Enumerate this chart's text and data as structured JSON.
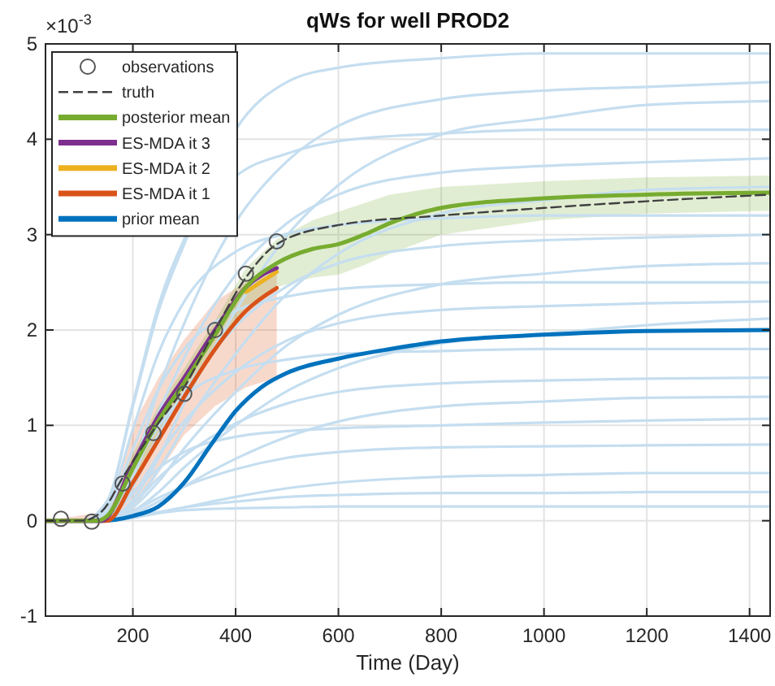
{
  "chart_data": {
    "type": "line",
    "title": "qWs for well PROD2",
    "xlabel": "Time (Day)",
    "annotations": [
      "×10$^{-3}$"
    ],
    "x": [
      30,
      100,
      150,
      200,
      250,
      300,
      400,
      500,
      600,
      800,
      1000,
      1200,
      1440
    ],
    "xlim": [
      30,
      1440
    ],
    "xticks": [
      200,
      400,
      600,
      800,
      1000,
      1200,
      1400
    ],
    "ylim": [
      -1,
      5
    ],
    "yticks": [
      -1,
      0,
      1,
      2,
      3,
      4,
      5
    ],
    "grid": true,
    "legend": "top left",
    "series": [
      {
        "color": "#c5def0",
        "values": [
          0,
          0,
          0.2,
          1.2,
          2.2,
          2.9,
          4.1,
          4.6,
          4.75,
          4.85,
          4.9,
          4.9,
          4.9
        ]
      },
      {
        "color": "#c5def0",
        "values": [
          0,
          0,
          0.09,
          0.55,
          1.38,
          2.07,
          3.13,
          3.77,
          4.14,
          4.42,
          4.51,
          4.55,
          4.6
        ]
      },
      {
        "color": "#c5def0",
        "values": [
          0,
          0,
          0,
          0.22,
          0.66,
          1.23,
          2.2,
          2.99,
          3.52,
          4.05,
          4.22,
          4.36,
          4.4
        ]
      },
      {
        "color": "#c5def0",
        "values": [
          0,
          0,
          0.21,
          1.23,
          2.26,
          2.95,
          3.61,
          3.85,
          3.98,
          4.06,
          4.1,
          4.1,
          4.1
        ]
      },
      {
        "color": "#c5def0",
        "values": [
          0,
          0,
          0.08,
          0.46,
          1.14,
          1.71,
          2.58,
          3.12,
          3.42,
          3.65,
          3.72,
          3.76,
          3.8
        ]
      },
      {
        "color": "#c5def0",
        "values": [
          0,
          0,
          0,
          0.18,
          0.53,
          0.98,
          1.75,
          2.38,
          2.8,
          3.22,
          3.36,
          3.47,
          3.5
        ]
      },
      {
        "color": "#c5def0",
        "values": [
          0,
          0,
          0.16,
          0.96,
          1.76,
          2.3,
          2.82,
          3.01,
          3.1,
          3.17,
          3.2,
          3.2,
          3.2
        ]
      },
      {
        "color": "#c5def0",
        "values": [
          0,
          0,
          0.06,
          0.36,
          0.9,
          1.35,
          2.04,
          2.46,
          2.7,
          2.88,
          2.94,
          2.97,
          3.0
        ]
      },
      {
        "color": "#c5def0",
        "values": [
          0,
          0,
          0,
          0.14,
          0.41,
          0.76,
          1.35,
          1.84,
          2.16,
          2.48,
          2.59,
          2.67,
          2.7
        ]
      },
      {
        "color": "#c5def0",
        "values": [
          0,
          0,
          0.13,
          0.75,
          1.38,
          1.8,
          2.2,
          2.35,
          2.43,
          2.48,
          2.5,
          2.5,
          2.5
        ]
      },
      {
        "color": "#c5def0",
        "values": [
          0,
          0,
          0.05,
          0.28,
          0.69,
          1.04,
          1.56,
          1.89,
          2.07,
          2.21,
          2.25,
          2.28,
          2.3
        ]
      },
      {
        "color": "#c5def0",
        "values": [
          0,
          0,
          0,
          0.1,
          0.3,
          0.56,
          1.0,
          1.36,
          1.6,
          1.86,
          1.96,
          2.05,
          2.12
        ]
      },
      {
        "color": "#c5def0",
        "values": [
          0,
          0,
          0.09,
          0.54,
          0.99,
          1.3,
          1.58,
          1.69,
          1.75,
          1.78,
          1.8,
          1.8,
          1.8
        ]
      },
      {
        "color": "#c5def0",
        "values": [
          0,
          0,
          0.03,
          0.18,
          0.45,
          0.68,
          1.02,
          1.23,
          1.35,
          1.44,
          1.47,
          1.49,
          1.5
        ]
      },
      {
        "color": "#c5def0",
        "values": [
          0,
          0,
          0,
          0.07,
          0.2,
          0.36,
          0.65,
          0.88,
          1.04,
          1.2,
          1.25,
          1.29,
          1.3
        ]
      },
      {
        "color": "#c5def0",
        "values": [
          0,
          0,
          0.05,
          0.3,
          0.55,
          0.72,
          0.88,
          0.94,
          0.97,
          1.0,
          1.03,
          1.05,
          1.07
        ]
      },
      {
        "color": "#c5def0",
        "values": [
          0,
          0,
          0.02,
          0.1,
          0.24,
          0.36,
          0.54,
          0.66,
          0.72,
          0.77,
          0.78,
          0.79,
          0.8
        ]
      },
      {
        "color": "#c5def0",
        "values": [
          0,
          0,
          0,
          0.03,
          0.08,
          0.14,
          0.25,
          0.34,
          0.4,
          0.46,
          0.48,
          0.5,
          0.5
        ]
      },
      {
        "color": "#c5def0",
        "values": [
          0,
          0,
          0.01,
          0.04,
          0.09,
          0.14,
          0.2,
          0.25,
          0.27,
          0.29,
          0.29,
          0.3,
          0.3
        ]
      },
      {
        "color": "#c5def0",
        "values": [
          0,
          0,
          0.01,
          0.05,
          0.08,
          0.11,
          0.13,
          0.14,
          0.15,
          0.15,
          0.15,
          0.15,
          0.15
        ]
      },
      {
        "name": "prior mean",
        "color": "#0072bd",
        "x": [
          30,
          140,
          200,
          250,
          300,
          350,
          400,
          450,
          500,
          600,
          700,
          800,
          1000,
          1200,
          1440
        ],
        "values": [
          0,
          0,
          0.05,
          0.15,
          0.4,
          0.78,
          1.15,
          1.4,
          1.55,
          1.7,
          1.8,
          1.88,
          1.95,
          1.99,
          2.0
        ]
      },
      {
        "name": "ES-MDA it 1",
        "color": "#d95319",
        "x": [
          30,
          150,
          200,
          250,
          300,
          360,
          420,
          480
        ],
        "values": [
          0,
          0,
          0.4,
          0.85,
          1.3,
          1.8,
          2.2,
          2.44
        ],
        "lower": [
          0,
          0,
          0.1,
          0.5,
          0.9,
          1.2,
          1.4,
          1.5
        ],
        "upper": [
          0,
          0.1,
          1.0,
          1.5,
          1.9,
          2.3,
          2.5,
          2.6
        ]
      },
      {
        "name": "ES-MDA it 2",
        "color": "#edb120",
        "x": [
          420,
          480
        ],
        "values": [
          2.4,
          2.61
        ]
      },
      {
        "name": "ES-MDA it 3",
        "color": "#7e2f8e",
        "x": [
          30,
          140,
          200,
          250,
          300,
          360,
          420,
          480
        ],
        "values": [
          0,
          0,
          0.6,
          1.1,
          1.5,
          2.0,
          2.45,
          2.65
        ]
      },
      {
        "name": "posterior mean",
        "color": "#77ac30",
        "x": [
          30,
          130,
          150,
          200,
          250,
          300,
          360,
          420,
          480,
          550,
          600,
          650,
          700,
          800,
          1000,
          1200,
          1440
        ],
        "values": [
          0,
          0,
          0.05,
          0.55,
          1.05,
          1.45,
          1.95,
          2.45,
          2.7,
          2.85,
          2.9,
          3.0,
          3.12,
          3.28,
          3.38,
          3.42,
          3.44
        ],
        "lower": [
          0,
          0,
          0,
          0.4,
          0.9,
          1.3,
          1.8,
          2.25,
          2.45,
          2.55,
          2.58,
          2.68,
          2.8,
          3.0,
          3.15,
          3.22,
          3.25
        ],
        "upper": [
          0,
          0,
          0.1,
          0.7,
          1.2,
          1.6,
          2.1,
          2.65,
          2.95,
          3.15,
          3.24,
          3.33,
          3.42,
          3.5,
          3.56,
          3.6,
          3.62
        ]
      },
      {
        "name": "truth",
        "color": "#404040",
        "line_style": "dashed",
        "x": [
          30,
          100,
          140,
          180,
          240,
          300,
          360,
          420,
          480,
          600,
          800,
          1000,
          1200,
          1440
        ],
        "values": [
          0,
          0,
          0.1,
          0.45,
          0.95,
          1.4,
          2.0,
          2.55,
          2.9,
          3.1,
          3.2,
          3.28,
          3.35,
          3.42
        ]
      },
      {
        "name": "observations",
        "type": "scatter",
        "marker": "circle",
        "color": "#555555",
        "x": [
          60,
          120,
          180,
          240,
          300,
          360,
          420,
          480
        ],
        "values": [
          0.02,
          -0.01,
          0.39,
          0.92,
          1.33,
          2.0,
          2.59,
          2.93
        ]
      }
    ]
  }
}
